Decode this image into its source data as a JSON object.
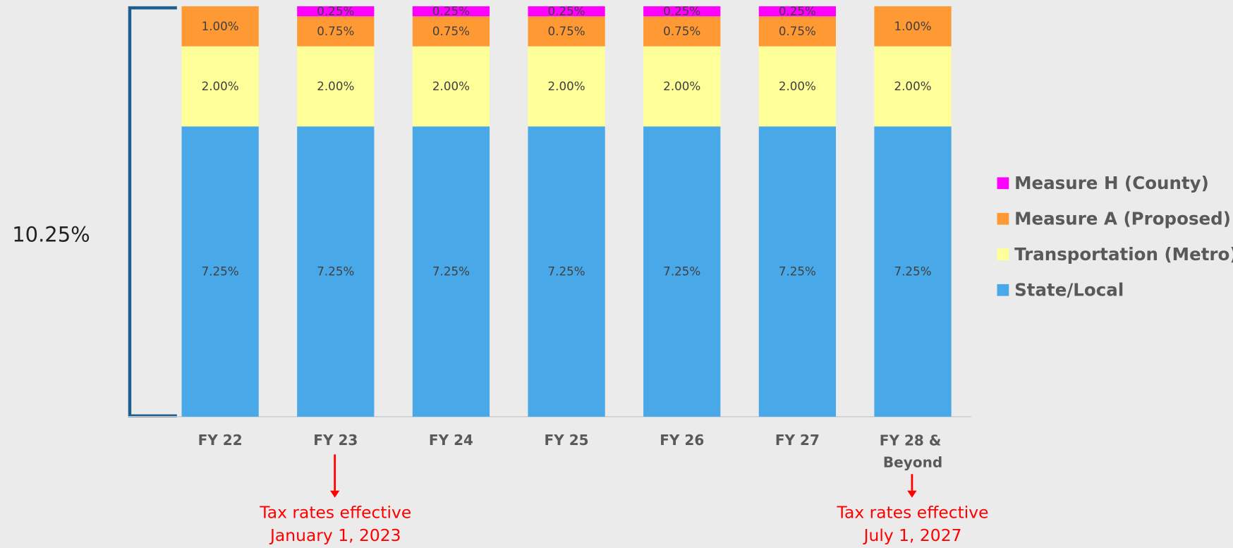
{
  "chart_data": {
    "type": "stacked_bar",
    "categories": [
      "FY 22",
      "FY 23",
      "FY 24",
      "FY 25",
      "FY 26",
      "FY 27",
      "FY 28 & Beyond"
    ],
    "series": [
      {
        "name": "State/Local",
        "color": "#48a8e8",
        "values": [
          7.25,
          7.25,
          7.25,
          7.25,
          7.25,
          7.25,
          7.25
        ],
        "value_labels": [
          "7.25%",
          "7.25%",
          "7.25%",
          "7.25%",
          "7.25%",
          "7.25%",
          "7.25%"
        ]
      },
      {
        "name": "Transportation (Metro)",
        "color": "#ffff99",
        "values": [
          2.0,
          2.0,
          2.0,
          2.0,
          2.0,
          2.0,
          2.0
        ],
        "value_labels": [
          "2.00%",
          "2.00%",
          "2.00%",
          "2.00%",
          "2.00%",
          "2.00%",
          "2.00%"
        ]
      },
      {
        "name": "Measure A (Proposed)",
        "color": "#ff9933",
        "values": [
          1.0,
          0.75,
          0.75,
          0.75,
          0.75,
          0.75,
          1.0
        ],
        "value_labels": [
          "1.00%",
          "0.75%",
          "0.75%",
          "0.75%",
          "0.75%",
          "0.75%",
          "1.00%"
        ]
      },
      {
        "name": "Measure H (County)",
        "color": "#ff00ff",
        "values": [
          null,
          0.25,
          0.25,
          0.25,
          0.25,
          0.25,
          null
        ],
        "value_labels": [
          null,
          "0.25%",
          "0.25%",
          "0.25%",
          "0.25%",
          "0.25%",
          null
        ]
      }
    ],
    "ylim": [
      0,
      10.25
    ],
    "total_label": "10.25%",
    "legend": "right",
    "annotations": [
      {
        "category": 1,
        "lines": [
          "Tax rates effective",
          "January 1, 2023"
        ],
        "color": "#ff0000"
      },
      {
        "category": 6,
        "lines": [
          "Tax rates effective",
          "July 1, 2027"
        ],
        "color": "#ff0000"
      }
    ]
  }
}
